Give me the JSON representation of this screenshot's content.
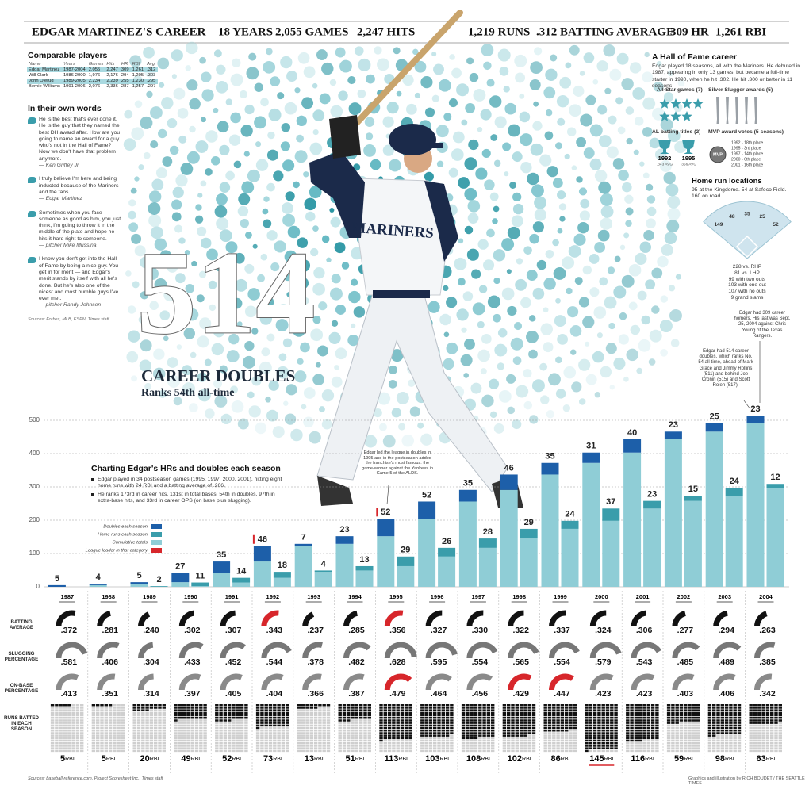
{
  "header": {
    "title": "EDGAR MARTINEZ'S CAREER",
    "stats": [
      "18 YEARS",
      "2,055 GAMES",
      "2,247 HITS",
      "1,219 RUNS",
      ".312 BATTING AVERAGE",
      "309 HR",
      "1,261 RBI"
    ]
  },
  "comparable": {
    "title": "Comparable players",
    "columns": [
      "Name",
      "Years",
      "Games",
      "Hits",
      "HR",
      "RBI",
      "Avg."
    ],
    "rows": [
      [
        "Edgar Martinez",
        "1987-2004",
        "2,055",
        "2,247",
        "309",
        "1,261",
        ".312"
      ],
      [
        "Will Clark",
        "1986-2000",
        "1,976",
        "2,176",
        "294",
        "1,205",
        ".303"
      ],
      [
        "John Olerud",
        "1989-2005",
        "2,234",
        "2,239",
        "255",
        "1,230",
        ".295"
      ],
      [
        "Bernie Williams",
        "1991-2006",
        "2,076",
        "2,336",
        "287",
        "1,257",
        ".297"
      ]
    ]
  },
  "quotes": {
    "title": "In their own words",
    "items": [
      {
        "text": "He is the best that's ever done it. He is the guy that they named the best DH award after. How are you going to name an award for a guy who's not in the Hall of Fame? Now we don't have that problem anymore.",
        "author": "— Ken Griffey Jr."
      },
      {
        "text": "I truly believe I'm here and being inducted because of the Mariners and the fans.",
        "author": "— Edgar Martinez"
      },
      {
        "text": "Sometimes when you face someone as good as him, you just think, I'm going to throw it in the middle of the plate and hope he hits it hard right to someone.",
        "author": "— pitcher Mike Mussina"
      },
      {
        "text": "I know you don't get into the Hall of Fame by being a nice guy. You get in for merit — and Edgar's merit stands by itself with all he's done. But he's also one of the nicest and most humble guys I've ever met.",
        "author": "— pitcher Randy Johnson"
      }
    ],
    "sources": "Sources: Forbes, MLB, ESPN, Times staff"
  },
  "hero": {
    "number": 514,
    "label": "CAREER DOUBLES",
    "sub": "Ranks 54th all-time"
  },
  "photo": {
    "jersey": "MARINERS"
  },
  "hof": {
    "title": "A Hall of Fame career",
    "text": "Edgar played 18 seasons, all with the Mariners. He debuted in 1987, appearing in only 13 games, but became a full-time starter in 1990, when he hit .302. He hit .300 or better in 11 seasons.",
    "all_star": {
      "label": "All-Star games (7)",
      "count": 7
    },
    "silver_slugger": {
      "label": "Silver Slugger awards (5)",
      "count": 5
    },
    "batting_titles": {
      "label": "AL batting titles (2)",
      "items": [
        {
          "year": "1992",
          "avg": ".343 AVG"
        },
        {
          "year": "1995",
          "avg": ".356 AVG"
        }
      ]
    },
    "mvp": {
      "label": "MVP award votes (5 seasons)",
      "badge": "MVP",
      "items": [
        "1992 - 18th place",
        "1995 - 3rd place",
        "1997 - 14th place",
        "2000 - 6th place",
        "2001 - 16th place"
      ]
    }
  },
  "hr_locations": {
    "title": "Home run locations",
    "text": "95 at the Kingdome. 54 at Safeco Field. 160 on road.",
    "field": [
      149,
      48,
      35,
      25,
      52
    ],
    "splits": [
      "228 vs. RHP",
      "81 vs. LHP",
      "99 with two outs",
      "103 with one out",
      "107 with no outs",
      "9 grand slams"
    ]
  },
  "annotations": {
    "last_hr": "Edgar had 309 career homers. His last was Sept. 25, 2004 against Chris Young of the Texas Rangers.",
    "doubles_rank": "Edgar had 514 career doubles, which ranks No. 54 all-time, ahead of Mark Grace and Jimmy Rollins (511) and behind Joe Cronin (515) and Scott Rolen (517).",
    "alds": "Edgar led the league in doubles in 1995 and in the postseason added the franchise's most famous: the game-winner against the Yankees in Game 5 of the ALDS."
  },
  "chart_data": {
    "type": "bar",
    "title": "Charting Edgar's HRs and doubles each season",
    "notes": [
      "Edgar played in 34 postseason games (1995, 1997, 2000, 2001), hitting eight home runs with 24 RBI and a batting average of .266.",
      "He ranks 173rd in career hits, 131st in total bases, 54th in doubles, 97th in extra-base hits, and 33rd in career OPS (on base plus slugging)."
    ],
    "categories": [
      "1987",
      "1988",
      "1989",
      "1990",
      "1991",
      "1992",
      "1993",
      "1994",
      "1995",
      "1996",
      "1997",
      "1998",
      "1999",
      "2000",
      "2001",
      "2002",
      "2003",
      "2004"
    ],
    "series": [
      {
        "name": "Doubles each season",
        "color": "#1d5fa9",
        "values": [
          5,
          4,
          5,
          27,
          35,
          46,
          7,
          23,
          52,
          52,
          35,
          46,
          35,
          31,
          40,
          23,
          25,
          23
        ],
        "leader": [
          false,
          false,
          false,
          false,
          false,
          true,
          false,
          false,
          true,
          false,
          false,
          false,
          false,
          false,
          false,
          false,
          false,
          false
        ]
      },
      {
        "name": "Home runs each season",
        "color": "#3a9dab",
        "values": [
          null,
          null,
          2,
          11,
          14,
          18,
          4,
          13,
          29,
          26,
          28,
          29,
          24,
          37,
          23,
          15,
          24,
          12
        ]
      }
    ],
    "cumulative_label": "Cumulative totals",
    "cumulative_color": "#8fcdd6",
    "leader_label": "League leader in that category",
    "leader_color": "#d7262b",
    "ylim": [
      0,
      520
    ],
    "yticks": [
      0,
      100,
      200,
      300,
      400,
      500
    ],
    "grid": true
  },
  "stats": {
    "gauge_lim": [
      0,
      0.65
    ],
    "rows": [
      {
        "label": "BATTING AVERAGE",
        "color": "#111111",
        "values": [
          0.372,
          0.281,
          0.24,
          0.302,
          0.307,
          0.343,
          0.237,
          0.285,
          0.356,
          0.327,
          0.33,
          0.322,
          0.337,
          0.324,
          0.306,
          0.277,
          0.294,
          0.263
        ],
        "value_labels": [
          ".372",
          ".281",
          ".240",
          ".302",
          ".307",
          ".343",
          ".237",
          ".285",
          ".356",
          ".327",
          ".330",
          ".322",
          ".337",
          ".324",
          ".306",
          ".277",
          ".294",
          ".263"
        ],
        "leader": [
          false,
          false,
          false,
          false,
          false,
          true,
          false,
          false,
          true,
          false,
          false,
          false,
          false,
          false,
          false,
          false,
          false,
          false
        ]
      },
      {
        "label": "SLUGGING PERCENTAGE",
        "color": "#777777",
        "values": [
          0.581,
          0.406,
          0.304,
          0.433,
          0.452,
          0.544,
          0.378,
          0.482,
          0.628,
          0.595,
          0.554,
          0.565,
          0.554,
          0.579,
          0.543,
          0.485,
          0.489,
          0.385
        ],
        "value_labels": [
          ".581",
          ".406",
          ".304",
          ".433",
          ".452",
          ".544",
          ".378",
          ".482",
          ".628",
          ".595",
          ".554",
          ".565",
          ".554",
          ".579",
          ".543",
          ".485",
          ".489",
          ".385"
        ]
      },
      {
        "label": "ON-BASE PERCENTAGE",
        "color": "#8a8a8a",
        "values": [
          0.413,
          0.351,
          0.314,
          0.397,
          0.405,
          0.404,
          0.366,
          0.387,
          0.479,
          0.464,
          0.456,
          0.429,
          0.447,
          0.423,
          0.423,
          0.403,
          0.406,
          0.342
        ],
        "value_labels": [
          ".413",
          ".351",
          ".314",
          ".397",
          ".405",
          ".404",
          ".366",
          ".387",
          ".479",
          ".464",
          ".456",
          ".429",
          ".447",
          ".423",
          ".423",
          ".403",
          ".406",
          ".342"
        ],
        "leader": [
          false,
          false,
          false,
          false,
          false,
          false,
          false,
          false,
          true,
          false,
          false,
          true,
          true,
          false,
          false,
          false,
          false,
          false
        ]
      }
    ],
    "rbi": {
      "label": "RUNS BATTED IN EACH SEASON",
      "unit": "RBI",
      "color": "#111111",
      "empty_color": "#cfcfcf",
      "values": [
        5,
        5,
        20,
        49,
        52,
        73,
        13,
        51,
        113,
        103,
        108,
        102,
        86,
        145,
        116,
        59,
        98,
        63
      ],
      "leader": [
        false,
        false,
        false,
        false,
        false,
        false,
        false,
        false,
        false,
        false,
        false,
        false,
        false,
        true,
        false,
        false,
        false,
        false
      ]
    }
  },
  "footer": {
    "sources": "Sources: baseball-reference.com, Project Scoresheet Inc., Times staff",
    "credit": "Graphics and illustration by RICH BOUDET / THE SEATTLE TIMES"
  }
}
